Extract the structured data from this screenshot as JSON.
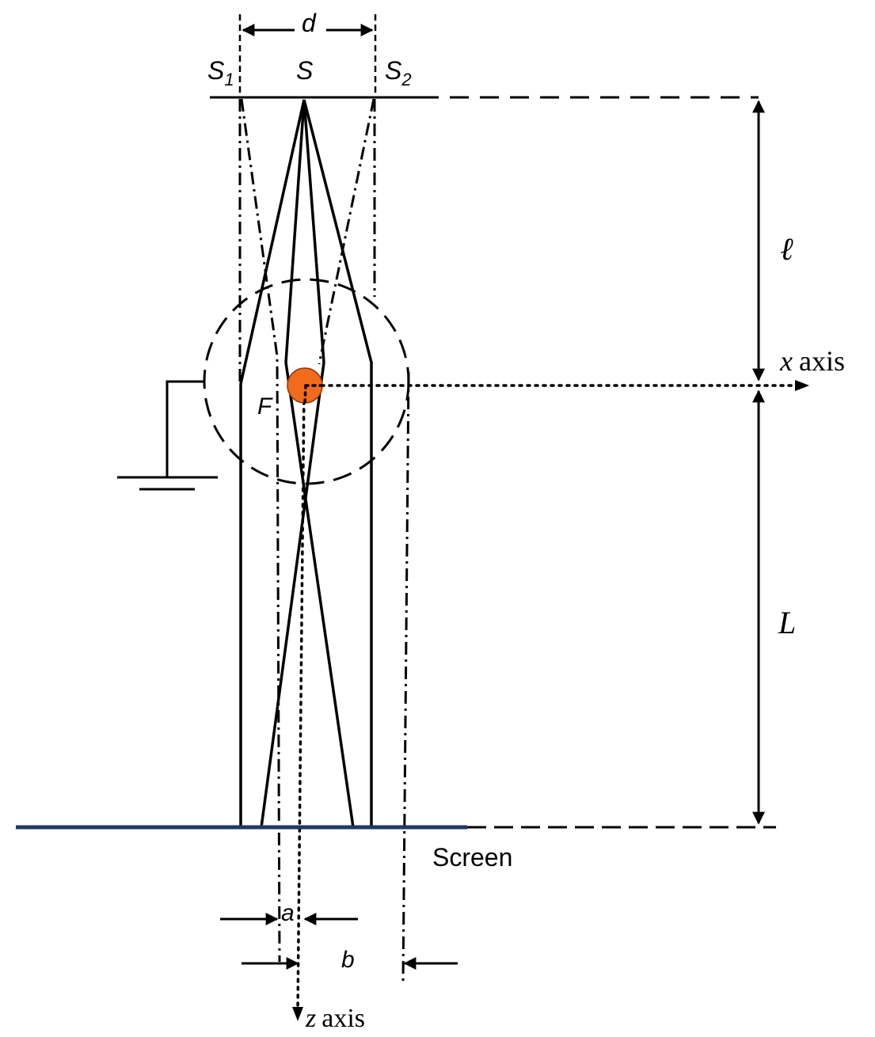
{
  "labels": {
    "d": "d",
    "s1_main": "S",
    "s1_sub": "1",
    "s": "S",
    "s2_main": "S",
    "s2_sub": "2",
    "ell": "ℓ",
    "x_axis_var": "x",
    "x_axis_word": "axis",
    "f": "F",
    "big_l": "L",
    "screen": "Screen",
    "a": "a",
    "b": "b",
    "z_axis_var": "z",
    "z_axis_word": "axis"
  },
  "colors": {
    "line": "#000000",
    "screen_line": "#1f3a5f",
    "fiber_fill": "#f26b1d",
    "fiber_stroke": "#8a3a0a"
  }
}
